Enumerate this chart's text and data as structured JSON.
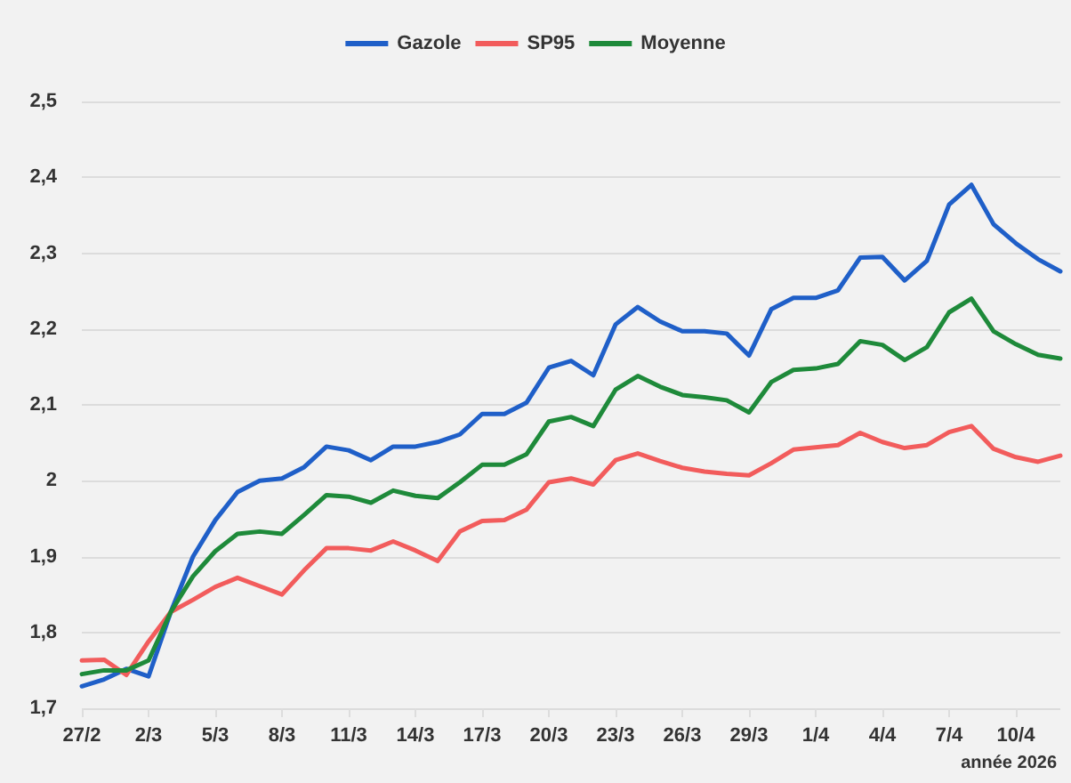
{
  "chart_data": {
    "type": "line",
    "categories": [
      "27/2",
      null,
      null,
      "2/3",
      null,
      null,
      "5/3",
      null,
      null,
      "8/3",
      null,
      null,
      "11/3",
      null,
      null,
      "14/3",
      null,
      null,
      "17/3",
      null,
      null,
      "20/3",
      null,
      null,
      "23/3",
      null,
      null,
      "26/3",
      null,
      null,
      "29/3",
      null,
      null,
      "1/4",
      null,
      null,
      "4/4",
      null,
      null,
      "7/4",
      null,
      null,
      "10/4",
      null,
      null
    ],
    "series": [
      {
        "name": "Gazole",
        "color": "#1f5fc8",
        "values": [
          1.729,
          1.738,
          1.752,
          1.742,
          1.827,
          1.9,
          1.948,
          1.985,
          2.0,
          2.003,
          2.018,
          2.045,
          2.04,
          2.027,
          2.045,
          2.045,
          2.051,
          2.061,
          2.088,
          2.088,
          2.103,
          2.149,
          2.158,
          2.139,
          2.206,
          2.229,
          2.21,
          2.197,
          2.197,
          2.194,
          2.165,
          2.226,
          2.241,
          2.241,
          2.251,
          2.294,
          2.295,
          2.264,
          2.29,
          2.364,
          2.39,
          2.338,
          2.313,
          2.292,
          2.276
        ]
      },
      {
        "name": "SP95",
        "color": "#f25c5c",
        "values": [
          1.763,
          1.764,
          1.744,
          1.788,
          1.827,
          1.843,
          1.86,
          1.872,
          1.861,
          1.85,
          1.882,
          1.911,
          1.911,
          1.908,
          1.92,
          1.908,
          1.894,
          1.933,
          1.947,
          1.948,
          1.962,
          1.998,
          2.003,
          1.995,
          2.027,
          2.036,
          2.026,
          2.017,
          2.012,
          2.009,
          2.007,
          2.023,
          2.041,
          2.044,
          2.047,
          2.063,
          2.051,
          2.043,
          2.047,
          2.064,
          2.072,
          2.042,
          2.031,
          2.025,
          2.033
        ]
      },
      {
        "name": "Moyenne",
        "color": "#1e8a3a",
        "values": [
          1.745,
          1.75,
          1.75,
          1.763,
          1.827,
          1.874,
          1.907,
          1.93,
          1.933,
          1.93,
          1.955,
          1.981,
          1.979,
          1.971,
          1.987,
          1.98,
          1.977,
          1.998,
          2.021,
          2.021,
          2.035,
          2.078,
          2.084,
          2.072,
          2.12,
          2.138,
          2.124,
          2.113,
          2.11,
          2.106,
          2.09,
          2.13,
          2.146,
          2.148,
          2.154,
          2.184,
          2.179,
          2.159,
          2.176,
          2.222,
          2.24,
          2.197,
          2.18,
          2.166,
          2.161
        ]
      }
    ],
    "ylim": [
      1.7,
      2.5
    ],
    "yticks": [
      {
        "value": 1.7,
        "label": "1,7"
      },
      {
        "value": 1.8,
        "label": "1,8"
      },
      {
        "value": 1.9,
        "label": "1,9"
      },
      {
        "value": 2.0,
        "label": "2"
      },
      {
        "value": 2.1,
        "label": "2,1"
      },
      {
        "value": 2.2,
        "label": "2,2"
      },
      {
        "value": 2.3,
        "label": "2,3"
      },
      {
        "value": 2.4,
        "label": "2,4"
      },
      {
        "value": 2.5,
        "label": "2,5"
      }
    ],
    "annotations": [
      "année 2026"
    ],
    "grid": "y",
    "legend": "top",
    "marker": "none",
    "line_style": "solid"
  }
}
